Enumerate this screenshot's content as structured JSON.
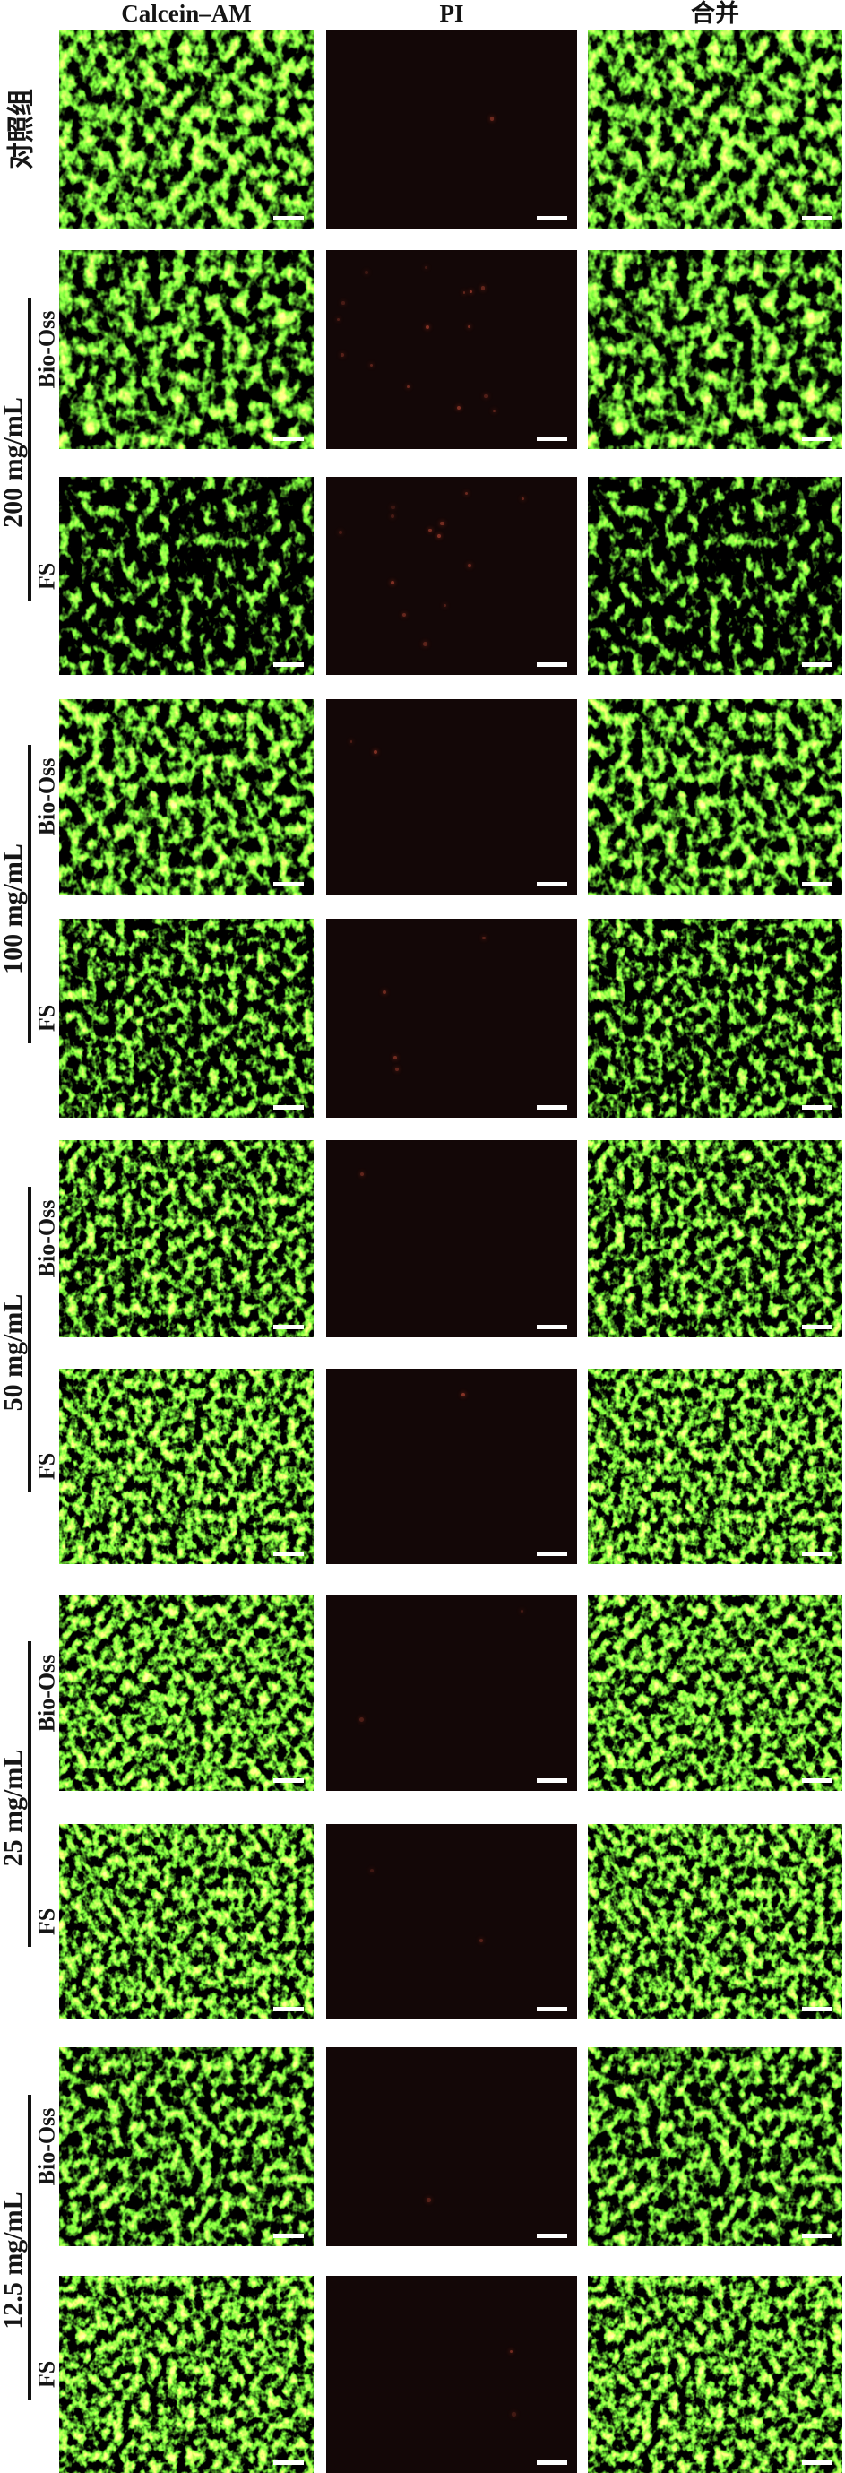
{
  "figure": {
    "column_headers": [
      "Calcein–AM",
      "PI",
      "合并"
    ],
    "groups": [
      {
        "label": "对照组",
        "rows": [
          {
            "sub_label": "",
            "cell_density": "very-dense",
            "pi_red_dots": 1
          }
        ]
      },
      {
        "label": "200 mg/mL",
        "rows": [
          {
            "sub_label": "Bio-Oss",
            "cell_density": "dense",
            "pi_red_dots": 15
          },
          {
            "sub_label": "FS",
            "cell_density": "sparse",
            "pi_red_dots": 13
          }
        ]
      },
      {
        "label": "100 mg/mL",
        "rows": [
          {
            "sub_label": "Bio-Oss",
            "cell_density": "dense",
            "pi_red_dots": 2
          },
          {
            "sub_label": "FS",
            "cell_density": "medium",
            "pi_red_dots": 4
          }
        ]
      },
      {
        "label": "50 mg/mL",
        "rows": [
          {
            "sub_label": "Bio-Oss",
            "cell_density": "dense",
            "pi_red_dots": 1
          },
          {
            "sub_label": "FS",
            "cell_density": "very-dense",
            "pi_red_dots": 1
          }
        ]
      },
      {
        "label": "25 mg/mL",
        "rows": [
          {
            "sub_label": "Bio-Oss",
            "cell_density": "very-dense",
            "pi_red_dots": 2
          },
          {
            "sub_label": "FS",
            "cell_density": "very-dense",
            "pi_red_dots": 2
          }
        ]
      },
      {
        "label": "12.5 mg/mL",
        "rows": [
          {
            "sub_label": "Bio-Oss",
            "cell_density": "dense",
            "pi_red_dots": 1
          },
          {
            "sub_label": "FS",
            "cell_density": "very-dense",
            "pi_red_dots": 2
          }
        ]
      }
    ],
    "colors": {
      "live_cell_green_bright": "#7ee34e",
      "live_cell_green_mid": "#2f8f35",
      "calcein_panel_background": "#06170a",
      "pi_panel_background": "#130707",
      "dead_cell_red_dot": "#93392a",
      "scale_bar": "#ffffff",
      "label_text": "#141414",
      "page_background": "#ffffff"
    }
  }
}
